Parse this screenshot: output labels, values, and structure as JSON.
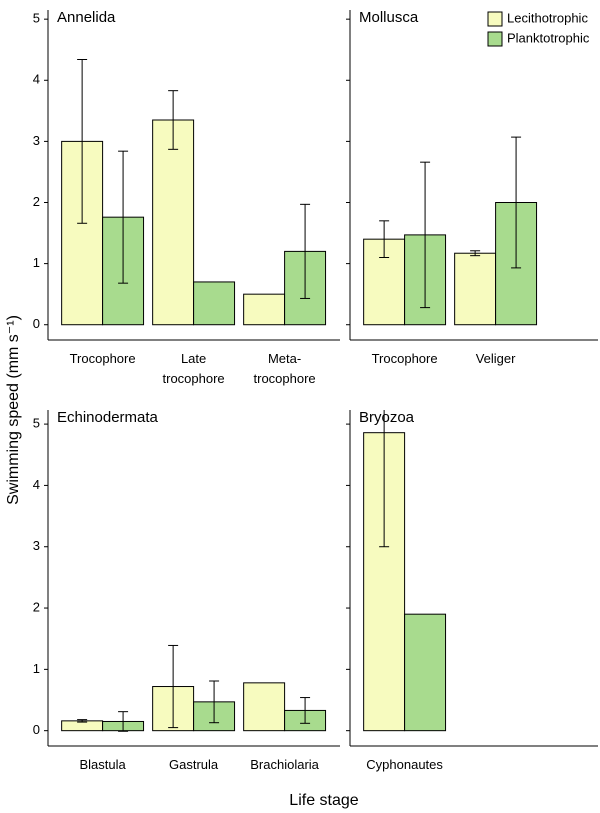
{
  "ylabel": "Swimming speed (mm s⁻¹)",
  "xlabel": "Life stage",
  "chart_data": [
    {
      "type": "bar",
      "title": "Annelida",
      "categories": [
        "Trocophore",
        "Late\ntrocophore",
        "Meta-\ntrocophore"
      ],
      "series": [
        {
          "name": "Lecithotrophic",
          "color": "#f7fbbf",
          "values": [
            3.0,
            3.35,
            0.5
          ],
          "errors": [
            1.34,
            0.48,
            null
          ]
        },
        {
          "name": "Planktotrophic",
          "color": "#a8db8e",
          "values": [
            1.76,
            0.7,
            1.2
          ],
          "errors": [
            1.08,
            null,
            0.77
          ]
        }
      ],
      "ylim": [
        -0.25,
        5.15
      ],
      "yticks": [
        0,
        1,
        2,
        3,
        4,
        5
      ]
    },
    {
      "type": "bar",
      "title": "Mollusca",
      "categories": [
        "Trocophore",
        "Veliger"
      ],
      "legend": "top-right",
      "series": [
        {
          "name": "Lecithotrophic",
          "color": "#f7fbbf",
          "values": [
            1.4,
            1.17
          ],
          "errors": [
            0.3,
            0.04
          ]
        },
        {
          "name": "Planktotrophic",
          "color": "#a8db8e",
          "values": [
            1.47,
            2.0
          ],
          "errors": [
            1.19,
            1.07
          ]
        }
      ],
      "ylim": [
        -0.25,
        5.15
      ],
      "yticks": [
        0,
        1,
        2,
        3,
        4,
        5
      ]
    },
    {
      "type": "bar",
      "title": "Echinodermata",
      "categories": [
        "Blastula",
        "Gastrula",
        "Brachiolaria"
      ],
      "series": [
        {
          "name": "Lecithotrophic",
          "color": "#f7fbbf",
          "values": [
            0.16,
            0.72,
            0.78
          ],
          "errors": [
            0.02,
            0.67,
            null
          ]
        },
        {
          "name": "Planktotrophic",
          "color": "#a8db8e",
          "values": [
            0.15,
            0.47,
            0.33
          ],
          "errors": [
            0.16,
            0.34,
            0.21
          ]
        }
      ],
      "ylim": [
        -0.25,
        5.23
      ],
      "yticks": [
        0,
        1,
        2,
        3,
        4,
        5
      ]
    },
    {
      "type": "bar",
      "title": "Bryozoa",
      "categories": [
        "Cyphonautes"
      ],
      "series": [
        {
          "name": "Lecithotrophic",
          "color": "#f7fbbf",
          "values": [
            4.86
          ],
          "errors": [
            1.86
          ]
        },
        {
          "name": "Planktotrophic",
          "color": "#a8db8e",
          "values": [
            1.9
          ],
          "errors": [
            null
          ]
        }
      ],
      "ylim": [
        -0.25,
        5.23
      ],
      "yticks": [
        0,
        1,
        2,
        3,
        4,
        5
      ]
    }
  ]
}
